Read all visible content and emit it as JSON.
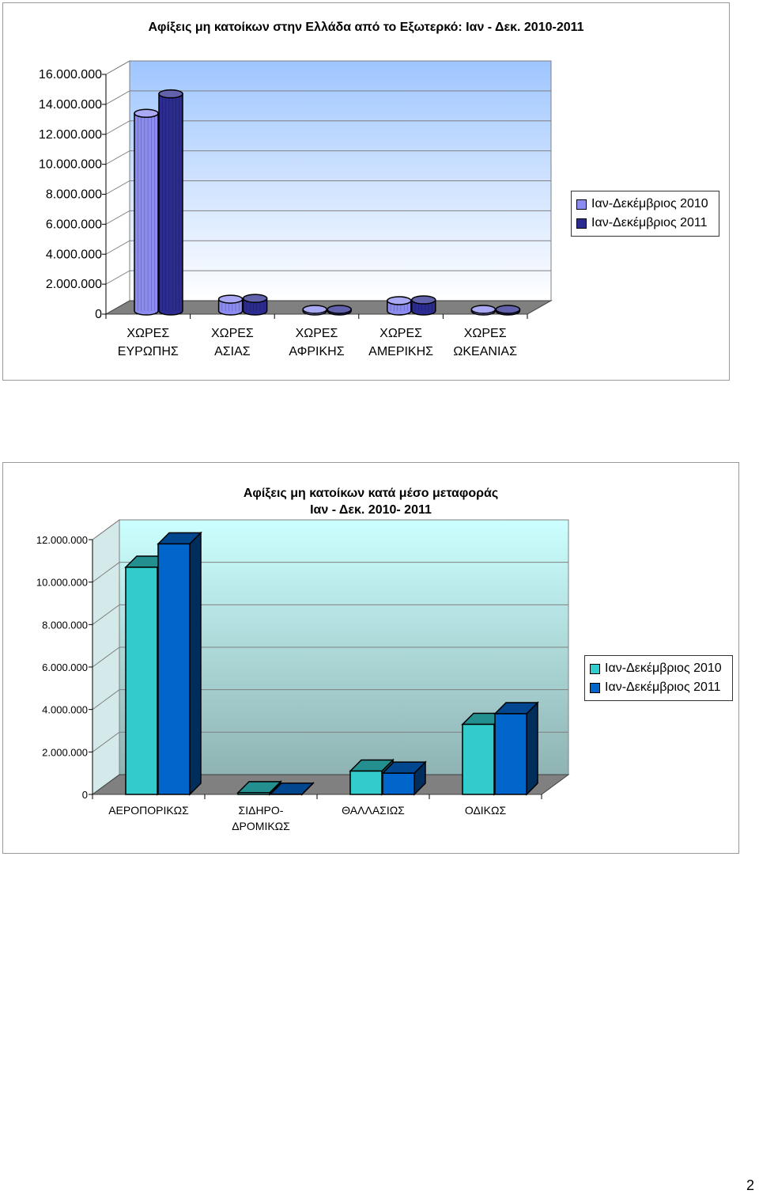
{
  "chart_data": [
    {
      "type": "bar",
      "title": "Αφίξεις μη κατοίκων στην Ελλάδα από το Εξωτερκό: Ιαν - Δεκ.  2010-2011",
      "categories": [
        [
          "ΧΩΡΕΣ",
          "ΕΥΡΩΠΗΣ"
        ],
        [
          "ΧΩΡΕΣ",
          "ΑΣΙΑΣ"
        ],
        [
          "ΧΩΡΕΣ",
          "ΑΦΡΙΚΗΣ"
        ],
        [
          "ΧΩΡΕΣ",
          "ΑΜΕΡΙΚΗΣ"
        ],
        [
          "ΧΩΡΕΣ",
          "ΩΚΕΑΝΙΑΣ"
        ]
      ],
      "series": [
        {
          "name": "Ιαν-Δεκέμβριος 2010",
          "color": "#8c8cf0",
          "values": [
            13400000,
            1000000,
            250000,
            900000,
            250000
          ]
        },
        {
          "name": "Ιαν-Δεκέμβριος 2011",
          "color": "#2c2c90",
          "values": [
            14700000,
            1050000,
            250000,
            950000,
            250000
          ]
        }
      ],
      "ylim": [
        0,
        16000000
      ],
      "yticks": [
        "0",
        "2.000.000",
        "4.000.000",
        "6.000.000",
        "8.000.000",
        "10.000.000",
        "12.000.000",
        "14.000.000",
        "16.000.000"
      ],
      "grid": true,
      "legend": "right",
      "wall_color_top": "#9fc6ff",
      "wall_color_bottom": "#ffffff"
    },
    {
      "type": "bar",
      "title": [
        "Αφίξεις μη κατοίκων κατά μέσο μεταφοράς",
        "Ιαν - Δεκ. 2010- 2011"
      ],
      "categories": [
        [
          "ΑΕΡΟΠΟΡΙΚΩΣ"
        ],
        [
          "ΣΙΔΗΡΟ-",
          "ΔΡΟΜΙΚΩΣ"
        ],
        [
          "ΘΑΛΛΑΣΙΩΣ"
        ],
        [
          "ΟΔΙΚΩΣ"
        ]
      ],
      "series": [
        {
          "name": "Ιαν-Δεκέμβριος 2010",
          "color": "#33cccc",
          "values": [
            10700000,
            80000,
            1100000,
            3300000
          ]
        },
        {
          "name": "Ιαν-Δεκέμβριος 2011",
          "color": "#0066cc",
          "values": [
            11800000,
            10000,
            1000000,
            3800000
          ]
        }
      ],
      "ylim": [
        0,
        12000000
      ],
      "yticks": [
        "0",
        "2.000.000",
        "4.000.000",
        "6.000.000",
        "8.000.000",
        "10.000.000",
        "12.000.000"
      ],
      "grid": true,
      "legend": "right",
      "wall_color_top": "#ccffff",
      "wall_color_bottom": "#8fb3b3"
    }
  ],
  "page_number": "2"
}
